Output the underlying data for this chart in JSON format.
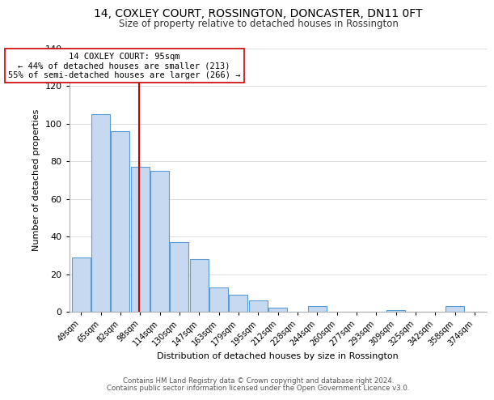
{
  "title": "14, COXLEY COURT, ROSSINGTON, DONCASTER, DN11 0FT",
  "subtitle": "Size of property relative to detached houses in Rossington",
  "xlabel": "Distribution of detached houses by size in Rossington",
  "ylabel": "Number of detached properties",
  "bar_labels": [
    "49sqm",
    "65sqm",
    "82sqm",
    "98sqm",
    "114sqm",
    "130sqm",
    "147sqm",
    "163sqm",
    "179sqm",
    "195sqm",
    "212sqm",
    "228sqm",
    "244sqm",
    "260sqm",
    "277sqm",
    "293sqm",
    "309sqm",
    "325sqm",
    "342sqm",
    "358sqm",
    "374sqm"
  ],
  "bar_values": [
    29,
    105,
    96,
    77,
    75,
    37,
    28,
    13,
    9,
    6,
    2,
    0,
    3,
    0,
    0,
    0,
    1,
    0,
    0,
    3,
    0
  ],
  "bar_color": "#c6d9f0",
  "bar_edge_color": "#5b9bd5",
  "property_line_label": "14 COXLEY COURT: 95sqm",
  "annotation_line1": "← 44% of detached houses are smaller (213)",
  "annotation_line2": "55% of semi-detached houses are larger (266) →",
  "vline_color": "#cc0000",
  "annotation_box_edge": "#cc0000",
  "ylim": [
    0,
    140
  ],
  "footer1": "Contains HM Land Registry data © Crown copyright and database right 2024.",
  "footer2": "Contains public sector information licensed under the Open Government Licence v3.0.",
  "title_fontsize": 10,
  "subtitle_fontsize": 8.5,
  "bg_color": "#ffffff"
}
